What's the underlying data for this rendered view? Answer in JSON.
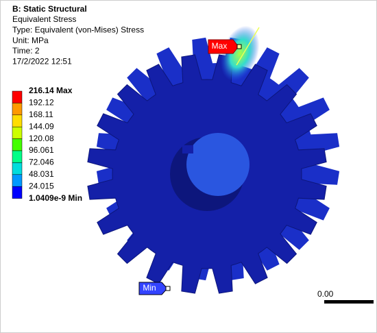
{
  "header": {
    "title": "B: Static Structural",
    "lines": [
      "Equivalent Stress",
      "Type: Equivalent (von-Mises) Stress",
      "Unit: MPa",
      "Time: 2",
      "17/2/2022 12:51"
    ]
  },
  "legend": {
    "labels": [
      "216.14 Max",
      "192.12",
      "168.11",
      "144.09",
      "120.08",
      "96.061",
      "72.046",
      "48.031",
      "24.015",
      "1.0409e-9 Min"
    ],
    "colors": [
      "#ff0000",
      "#ff9900",
      "#ffdd00",
      "#ccff00",
      "#44ff00",
      "#00ff88",
      "#00dddd",
      "#0099ff",
      "#0000ff"
    ]
  },
  "probes": {
    "max": "Max",
    "min": "Min"
  },
  "scale": {
    "label": "0.00"
  }
}
